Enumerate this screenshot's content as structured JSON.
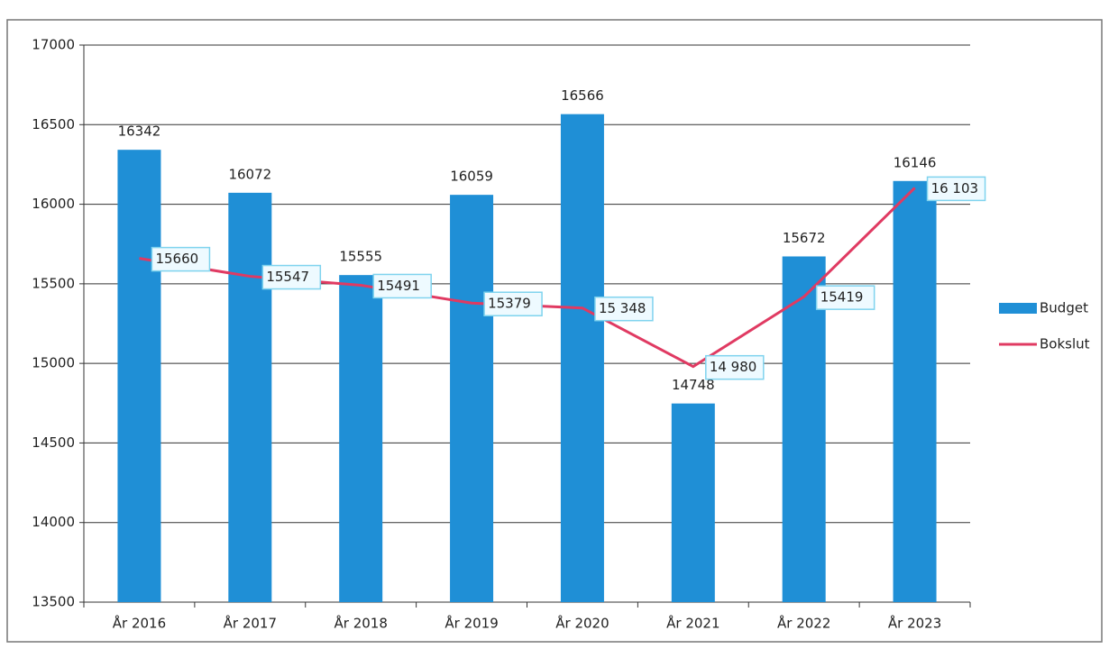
{
  "chart_data": {
    "type": "bar",
    "categories": [
      "År 2016",
      "År 2017",
      "År 2018",
      "År 2019",
      "År 2020",
      "År 2021",
      "År 2022",
      "År 2023"
    ],
    "series": [
      {
        "name": "Budget",
        "type": "bar",
        "color": "#1f8fd6",
        "values": [
          16342,
          16072,
          15555,
          16059,
          16566,
          14748,
          15672,
          16146
        ]
      },
      {
        "name": "Bokslut",
        "type": "line",
        "color": "#e03a62",
        "values": [
          15660,
          15547,
          15491,
          15379,
          15348,
          14980,
          15419,
          16103
        ],
        "value_labels": [
          "15660",
          "15547",
          "15491",
          "15379",
          "15 348",
          "14 980",
          "15419",
          "16 103"
        ]
      }
    ],
    "ylim": [
      13500,
      17000
    ],
    "yticks": [
      13500,
      14000,
      14500,
      15000,
      15500,
      16000,
      16500,
      17000
    ],
    "grid": true,
    "legend": "right"
  }
}
